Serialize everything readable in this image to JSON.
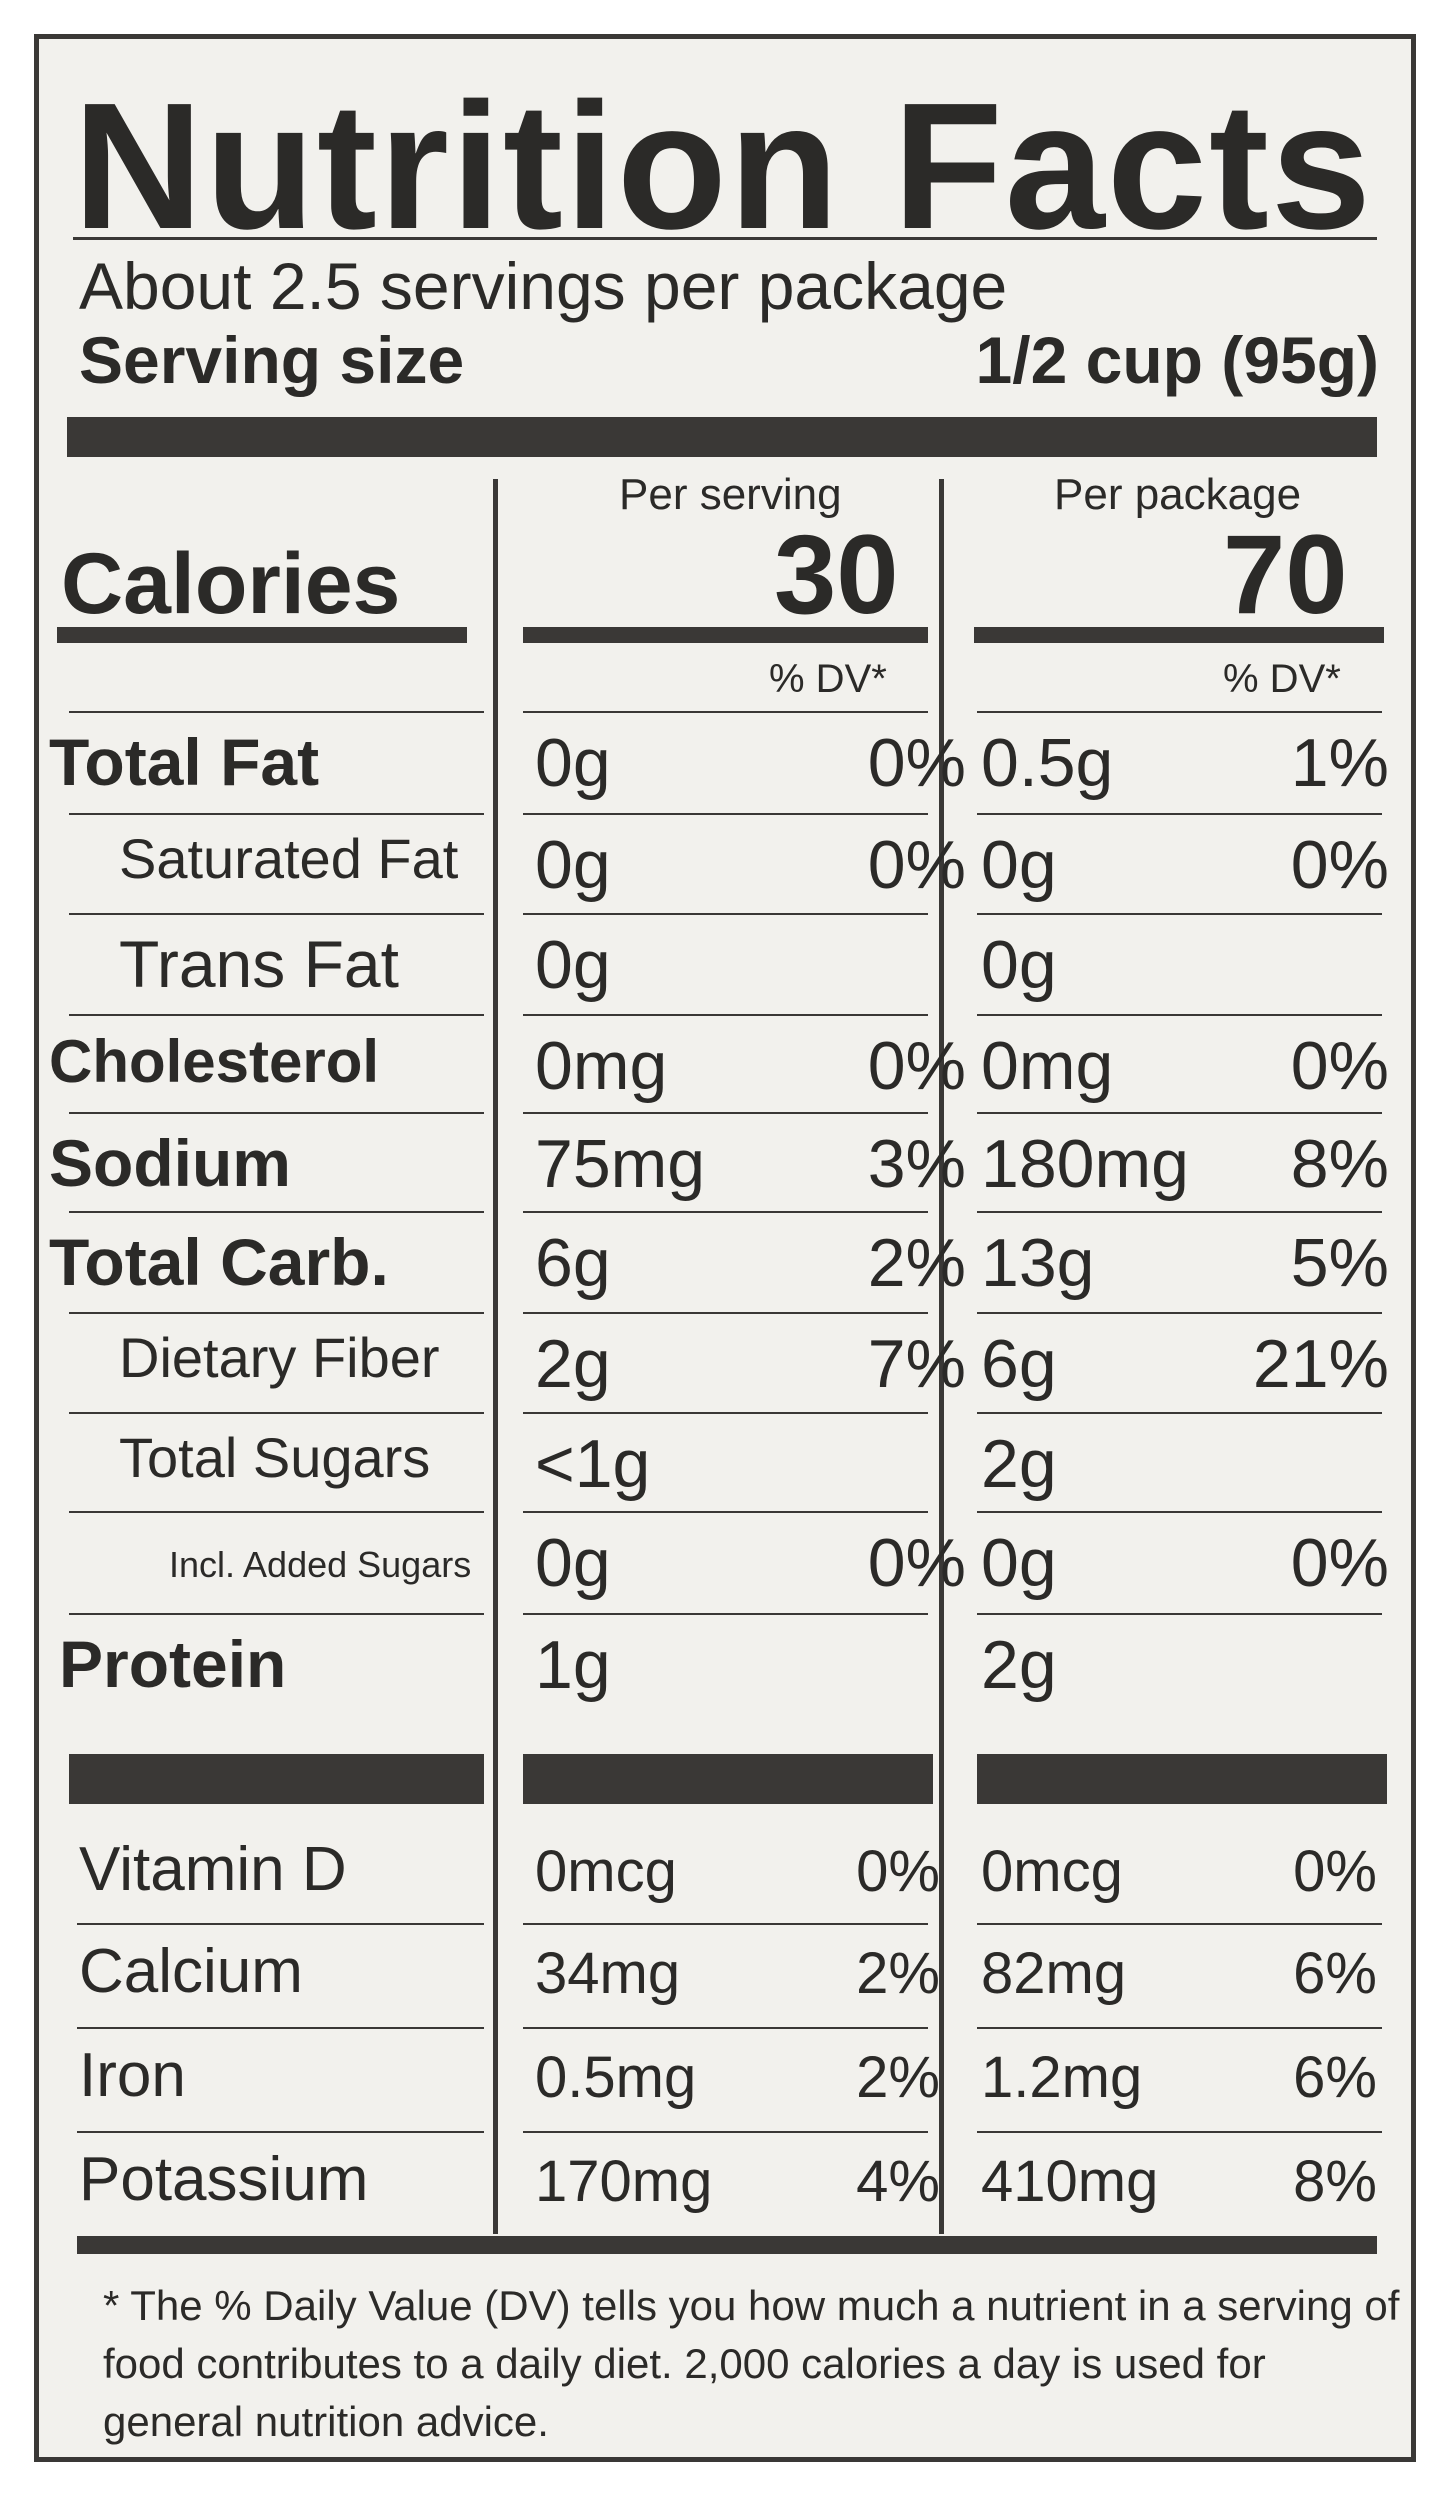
{
  "title": "Nutrition Facts",
  "servings_per_package": "About 2.5 servings per package",
  "serving_size_label": "Serving size",
  "serving_size_value": "1/2 cup (95g)",
  "columns": {
    "per_serving": "Per serving",
    "per_package": "Per package"
  },
  "calories": {
    "label": "Calories",
    "per_serving": "30",
    "per_package": "70"
  },
  "dv_header": "% DV*",
  "nutrients": [
    {
      "label": "Total Fat",
      "serving_amt": "0g",
      "serving_dv": "0%",
      "package_amt": "0.5g",
      "package_dv": "1%"
    },
    {
      "label": "Saturated Fat",
      "serving_amt": "0g",
      "serving_dv": "0%",
      "package_amt": "0g",
      "package_dv": "0%"
    },
    {
      "label": "Trans Fat",
      "serving_amt": "0g",
      "serving_dv": "",
      "package_amt": "0g",
      "package_dv": ""
    },
    {
      "label": "Cholesterol",
      "serving_amt": "0mg",
      "serving_dv": "0%",
      "package_amt": "0mg",
      "package_dv": "0%"
    },
    {
      "label": "Sodium",
      "serving_amt": "75mg",
      "serving_dv": "3%",
      "package_amt": "180mg",
      "package_dv": "8%"
    },
    {
      "label": "Total Carb.",
      "serving_amt": "6g",
      "serving_dv": "2%",
      "package_amt": "13g",
      "package_dv": "5%"
    },
    {
      "label": "Dietary Fiber",
      "serving_amt": "2g",
      "serving_dv": "7%",
      "package_amt": "6g",
      "package_dv": "21%"
    },
    {
      "label": "Total Sugars",
      "serving_amt": "<1g",
      "serving_dv": "",
      "package_amt": "2g",
      "package_dv": ""
    },
    {
      "label": "Incl. Added Sugars",
      "serving_amt": "0g",
      "serving_dv": "0%",
      "package_amt": "0g",
      "package_dv": "0%"
    },
    {
      "label": "Protein",
      "serving_amt": "1g",
      "serving_dv": "",
      "package_amt": "2g",
      "package_dv": ""
    }
  ],
  "vitamins": [
    {
      "label": "Vitamin D",
      "serving_amt": "0mcg",
      "serving_dv": "0%",
      "package_amt": "0mcg",
      "package_dv": "0%"
    },
    {
      "label": "Calcium",
      "serving_amt": "34mg",
      "serving_dv": "2%",
      "package_amt": "82mg",
      "package_dv": "6%"
    },
    {
      "label": "Iron",
      "serving_amt": "0.5mg",
      "serving_dv": "2%",
      "package_amt": "1.2mg",
      "package_dv": "6%"
    },
    {
      "label": "Potassium",
      "serving_amt": "170mg",
      "serving_dv": "4%",
      "package_amt": "410mg",
      "package_dv": "8%"
    }
  ],
  "footnote": "* The % Daily Value (DV) tells you how much a nutrient in a serving of food contributes to a daily diet. 2,000 calories a day is used for general nutrition advice.",
  "colors": {
    "ink": "#3a3836",
    "background": "#f2f1ed"
  }
}
